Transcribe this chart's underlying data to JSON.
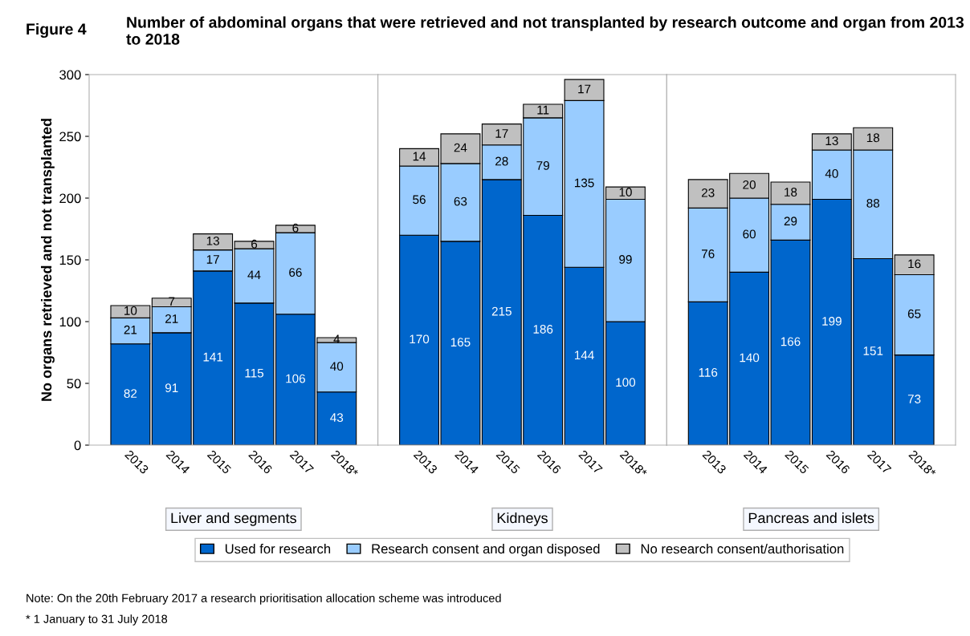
{
  "chart_data": [
    {
      "type": "bar",
      "stacked": true,
      "title": "Number of abdominal organs that were retrieved and not transplanted by research outcome and organ from 2013 to 2018",
      "xlabel": "Liver and segments",
      "ylabel": "No organs retrieved and not transplanted",
      "categories": [
        "2013",
        "2014",
        "2015",
        "2016",
        "2017",
        "2018*"
      ],
      "ylim": [
        0,
        300
      ],
      "yticks": [
        0,
        50,
        100,
        150,
        200,
        250,
        300
      ],
      "data_labels": true,
      "legend": "bottom",
      "annotations": [
        "Figure 4",
        "Note: On the 20th February 2017 a research prioritisation allocation scheme was introduced",
        "* 1 January to 31 July 2018"
      ],
      "series": [
        {
          "name": "Used for research",
          "color": "#0066cc",
          "values": [
            82,
            91,
            141,
            115,
            106,
            43
          ]
        },
        {
          "name": "Research consent and organ disposed",
          "color": "#99ccff",
          "values": [
            21,
            21,
            17,
            44,
            66,
            40
          ]
        },
        {
          "name": "No research consent/authorisation",
          "color": "#c0c0c0",
          "values": [
            10,
            7,
            13,
            6,
            6,
            4
          ]
        }
      ]
    },
    {
      "type": "bar",
      "stacked": true,
      "xlabel": "Kidneys",
      "categories": [
        "2013",
        "2014",
        "2015",
        "2016",
        "2017",
        "2018*"
      ],
      "ylim": [
        0,
        300
      ],
      "tick_labels": "x",
      "data_labels": true,
      "series": [
        {
          "color": "#0066cc",
          "values": [
            170,
            165,
            215,
            186,
            144,
            100
          ]
        },
        {
          "color": "#99ccff",
          "values": [
            56,
            63,
            28,
            79,
            135,
            99
          ]
        },
        {
          "color": "#c0c0c0",
          "values": [
            14,
            24,
            17,
            11,
            17,
            10
          ]
        }
      ]
    },
    {
      "type": "bar",
      "stacked": true,
      "xlabel": "Pancreas and islets",
      "categories": [
        "2013",
        "2014",
        "2015",
        "2016",
        "2017",
        "2018*"
      ],
      "ylim": [
        0,
        300
      ],
      "tick_labels": "x",
      "data_labels": true,
      "series": [
        {
          "color": "#0066cc",
          "values": [
            116,
            140,
            166,
            199,
            151,
            73
          ]
        },
        {
          "color": "#99ccff",
          "values": [
            76,
            60,
            29,
            40,
            88,
            65
          ]
        },
        {
          "color": "#c0c0c0",
          "values": [
            23,
            20,
            18,
            13,
            18,
            16
          ]
        }
      ]
    }
  ]
}
